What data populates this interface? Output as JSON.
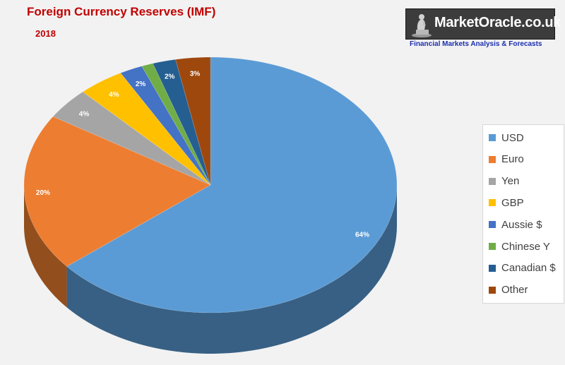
{
  "title": "Foreign Currency Reserves (IMF)",
  "subtitle": "2018",
  "brand": {
    "name": "MarketOracle.co.uk",
    "tagline": "Financial Markets Analysis & Forecasts",
    "icon": "thinker-statue-icon"
  },
  "chart_data": {
    "type": "pie",
    "title": "Foreign Currency Reserves (IMF)",
    "subtitle": "2018",
    "legend_position": "right",
    "categories": [
      "USD",
      "Euro",
      "Yen",
      "GBP",
      "Aussie $",
      "Chinese Y",
      "Canadian $",
      "Other"
    ],
    "values": [
      64,
      20,
      4,
      4,
      2,
      1,
      2,
      3
    ],
    "labels": [
      "64%",
      "20%",
      "4%",
      "4%",
      "2%",
      "",
      "2%",
      "3%"
    ],
    "colors": [
      "#5b9bd5",
      "#ed7d31",
      "#a5a5a5",
      "#ffc000",
      "#4472c4",
      "#70ad47",
      "#255e91",
      "#9e480e"
    ]
  }
}
